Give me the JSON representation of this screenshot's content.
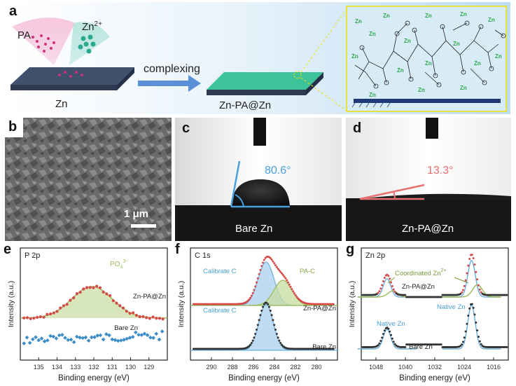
{
  "panel_a": {
    "label": "a",
    "pa": "PA",
    "zn_ion": "Zn",
    "zn_ion_charge": "2+",
    "arrow_text": "complexing",
    "left_substrate": "Zn",
    "right_substrate": "Zn-PA@Zn",
    "ion_tag": "Zn",
    "ion_tag_charge": "2+"
  },
  "panel_b": {
    "label": "b",
    "scalebar": "1 μm"
  },
  "panel_c": {
    "label": "c",
    "angle": "80.6°",
    "caption": "Bare Zn"
  },
  "panel_d": {
    "label": "d",
    "angle": "13.3°",
    "caption": "Zn-PA@Zn"
  },
  "colors": {
    "wet_blue": "#4aa0dc",
    "wet_red": "#e87070",
    "fit_green": "#9aba5a",
    "fit_blue": "#6aaedc",
    "data_red": "#d64a4a",
    "data_blue": "#3c8cc8",
    "bg_gray": "#555555"
  },
  "chart_data": [
    {
      "type": "scatter",
      "panel": "e",
      "title": "P 2p",
      "xlabel": "Binding energy (eV)",
      "ylabel": "Intensity (a.u.)",
      "xlim": [
        136,
        128
      ],
      "xticks": [
        "135",
        "134",
        "133",
        "132",
        "131",
        "130",
        "129"
      ],
      "xtick_values": [
        135,
        134,
        133,
        132,
        131,
        130,
        129
      ],
      "annotation": "PO",
      "annotation_sub": "4",
      "annotation_sup": "3-",
      "annotation_color": "#9aba5a",
      "series": [
        {
          "name": "Zn-PA@Zn",
          "color": "#d64a4a",
          "peak": {
            "center": 132.1,
            "fwhm": 2.6,
            "height": 1.0
          },
          "baseline": 0.55
        },
        {
          "name": "Bare Zn",
          "color": "#3c8cc8",
          "flat": 0.25
        }
      ]
    },
    {
      "type": "scatter",
      "panel": "f",
      "title": "C 1s",
      "xlabel": "Binding energy (eV)",
      "ylabel": "Intensity (a.u.)",
      "xlim": [
        292,
        278
      ],
      "xticks": [
        "290",
        "288",
        "286",
        "284",
        "282",
        "280"
      ],
      "xtick_values": [
        290,
        288,
        286,
        284,
        282,
        280
      ],
      "labels": [
        "Calibrate C",
        "PA-C",
        "Calibrate C"
      ],
      "series": [
        {
          "name": "Zn-PA@Zn",
          "color": "#d64a4a",
          "peaks": [
            {
              "center": 284.8,
              "fwhm": 1.8,
              "height": 1.0,
              "label": "Calibrate C"
            },
            {
              "center": 283.2,
              "fwhm": 2.0,
              "height": 0.58,
              "label": "PA-C"
            }
          ]
        },
        {
          "name": "Bare Zn",
          "color": "#333333",
          "peaks": [
            {
              "center": 284.8,
              "fwhm": 1.6,
              "height": 1.0,
              "label": "Calibrate C"
            }
          ]
        }
      ]
    },
    {
      "type": "scatter",
      "panel": "g",
      "title": "Zn 2p",
      "xlabel": "Binding energy (eV)",
      "ylabel": "Intensity (a.u.)",
      "xlim": [
        1052,
        1012
      ],
      "xticks": [
        "1048",
        "1040",
        "1032",
        "1024",
        "1016"
      ],
      "xtick_values": [
        1048,
        1040,
        1032,
        1024,
        1016
      ],
      "annotation": "Coordinated Zn",
      "annotation_sup": "2+",
      "labels": [
        "Native Zn",
        "Native Zn"
      ],
      "series": [
        {
          "name": "Zn-PA@Zn",
          "color": "#d64a4a",
          "peaks": [
            {
              "center": 1045.0,
              "height": 0.5
            },
            {
              "center": 1022.0,
              "height": 1.0
            }
          ]
        },
        {
          "name": "Bare Zn",
          "color": "#333333",
          "peaks": [
            {
              "center": 1045.0,
              "height": 0.45,
              "label": "Native Zn"
            },
            {
              "center": 1022.0,
              "height": 1.0,
              "label": "Native Zn"
            }
          ]
        }
      ]
    }
  ]
}
